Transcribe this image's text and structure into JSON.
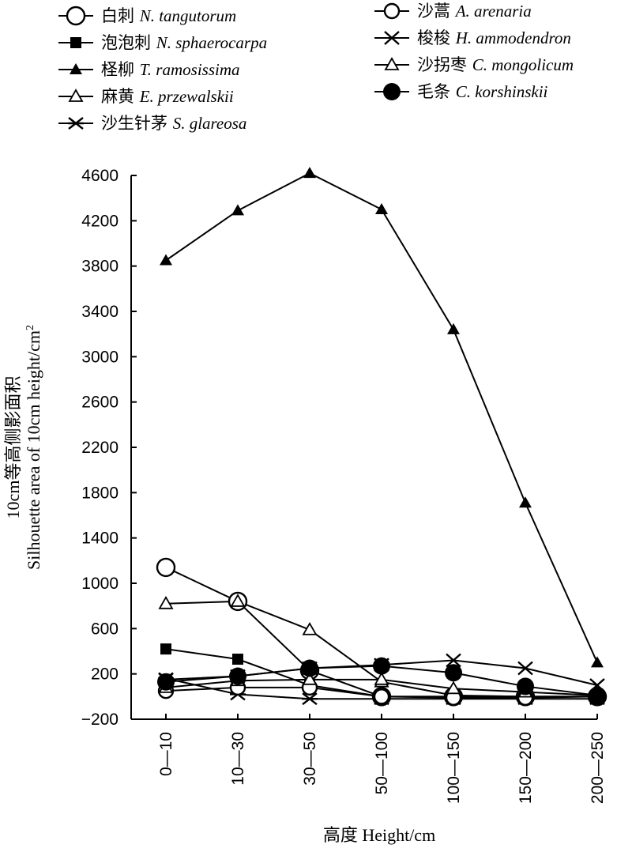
{
  "chart_data": {
    "type": "line",
    "xlabel": "高度 Height/cm",
    "ylabel_zh": "10cm等高侧影面积",
    "ylabel_en": "Silhouette area of 10cm height/cm",
    "ylabel_sup": "2",
    "categories": [
      "0—10",
      "10—30",
      "30—50",
      "50—100",
      "100—150",
      "150—200",
      "200—250"
    ],
    "ylim": [
      -200,
      4600
    ],
    "yticks": [
      -200,
      200,
      600,
      1000,
      1400,
      1800,
      2200,
      2600,
      3000,
      3400,
      3800,
      4200,
      4600
    ],
    "ytick_labels": [
      "−200",
      "200",
      "600",
      "1000",
      "1400",
      "1800",
      "2200",
      "2600",
      "3000",
      "3400",
      "3800",
      "4200",
      "4600"
    ],
    "grid": false,
    "legend_position": "top",
    "series": [
      {
        "name_zh": "白刺",
        "name_sp": "N. tangutorum",
        "marker": "open-circle-large",
        "values": [
          1140,
          840,
          230,
          0,
          0,
          0,
          0
        ]
      },
      {
        "name_zh": "泡泡刺",
        "name_sp": "N. sphaerocarpa",
        "marker": "filled-square",
        "values": [
          420,
          330,
          100,
          0,
          0,
          0,
          0
        ]
      },
      {
        "name_zh": "柽柳",
        "name_sp": "T. ramosissima",
        "marker": "filled-triangle",
        "values": [
          3850,
          4290,
          4620,
          4300,
          3240,
          1710,
          300
        ]
      },
      {
        "name_zh": "麻黄",
        "name_sp": "E. przewalskii",
        "marker": "open-triangle",
        "values": [
          820,
          840,
          590,
          130,
          10,
          0,
          0
        ]
      },
      {
        "name_zh": "沙生针茅",
        "name_sp": "S. glareosa",
        "marker": "asterisk",
        "values": [
          160,
          20,
          -20,
          -20,
          -20,
          -20,
          -20
        ]
      },
      {
        "name_zh": "沙蒿",
        "name_sp": "A. arenaria",
        "marker": "open-circle",
        "values": [
          50,
          80,
          80,
          0,
          -10,
          -10,
          0
        ]
      },
      {
        "name_zh": "梭梭",
        "name_sp": "H. ammodendron",
        "marker": "cross",
        "values": [
          150,
          180,
          250,
          280,
          320,
          250,
          100
        ]
      },
      {
        "name_zh": "沙拐枣",
        "name_sp": "C. mongolicum",
        "marker": "open-triangle",
        "values": [
          80,
          140,
          150,
          150,
          70,
          40,
          10
        ]
      },
      {
        "name_zh": "毛条",
        "name_sp": "C. korshinskii",
        "marker": "filled-circle",
        "values": [
          130,
          180,
          250,
          270,
          210,
          90,
          10
        ]
      }
    ]
  }
}
